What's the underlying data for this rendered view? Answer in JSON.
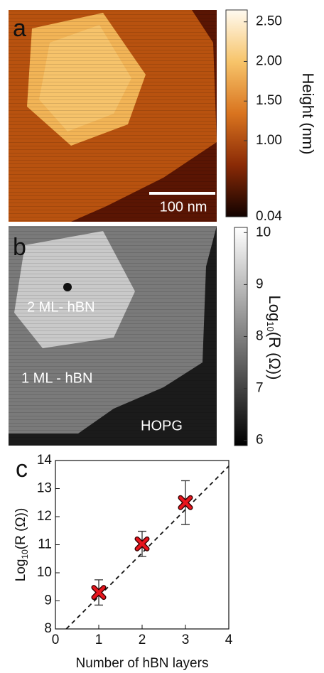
{
  "chart_data": [
    {
      "type": "image",
      "panel_label": "a",
      "scale_bar_label": "100 nm",
      "colorbar": {
        "label": "Height (nm)",
        "ylim": [
          0.04,
          2.65
        ],
        "yticks": [
          0.04,
          {
            "value": 1,
            "label": "1.00"
          },
          {
            "value": 1.5,
            "label": "1.50"
          },
          {
            "value": 2,
            "label": "2.00"
          },
          {
            "value": 2.5,
            "label": "2.50"
          }
        ]
      }
    },
    {
      "type": "image",
      "panel_label": "b",
      "annotations": [
        "2 ML- hBN",
        "1 ML - hBN",
        "HOPG"
      ],
      "colorbar": {
        "label": {
          "prefix": "Log",
          "sub": "10",
          "suffix": "(R (Ω))"
        },
        "ylim": [
          5.9,
          10.1
        ],
        "yticks": [
          6,
          7,
          8,
          9,
          10
        ]
      }
    },
    {
      "type": "scatter",
      "panel_label": "c",
      "xlabel": "Number of hBN layers",
      "ylabel": {
        "prefix": "Log",
        "sub": "10",
        "suffix": "(R (Ω))"
      },
      "x": [
        1,
        2,
        3
      ],
      "values": [
        9.3,
        11.03,
        12.5
      ],
      "errors": [
        0.45,
        0.45,
        0.78
      ],
      "color": "#e8141c",
      "fit": {
        "x": [
          0.25,
          4
        ],
        "values": [
          8,
          13.8
        ]
      },
      "xlim": [
        0,
        4
      ],
      "ylim": [
        8,
        14
      ],
      "xticks": [
        0,
        1,
        2,
        3,
        4
      ],
      "yticks": [
        8,
        9,
        10,
        11,
        12,
        13,
        14
      ]
    }
  ]
}
